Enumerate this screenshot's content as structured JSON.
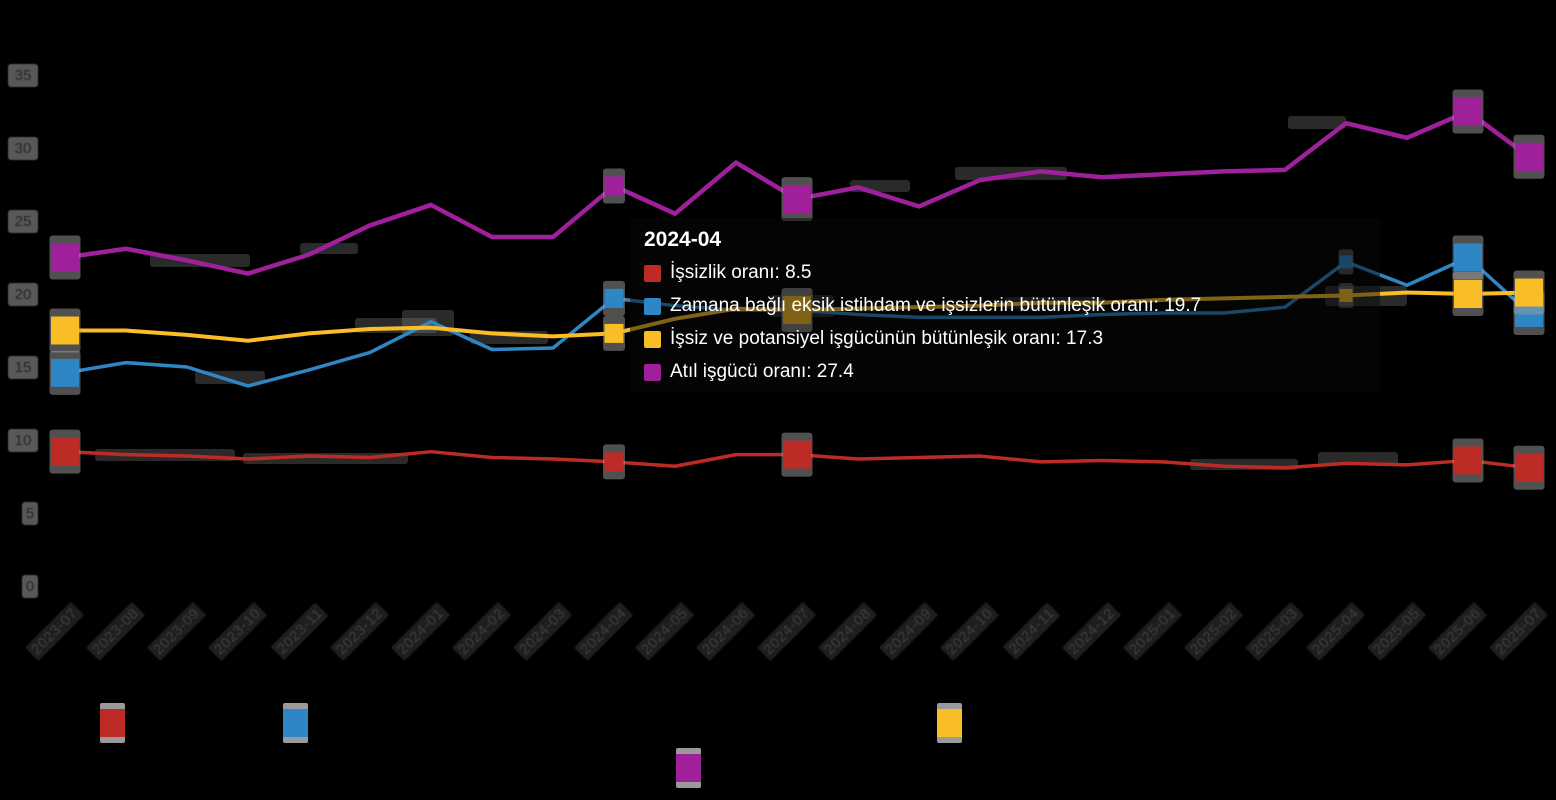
{
  "tooltip": {
    "title": "2024-04",
    "items": [
      {
        "text": "İşsizlik oranı: 8.5"
      },
      {
        "text": "Zamana bağlı eksik istihdam ve işsizlerin bütünleşik oranı: 19.7"
      },
      {
        "text": "İşsiz ve potansiyel işgücünün bütünleşik oranı: 17.3"
      },
      {
        "text": "Atıl işgücü oranı: 27.4"
      }
    ]
  },
  "legend": {
    "items": [
      {
        "label": "İşsizlik oranı",
        "color": "#bd2b26"
      },
      {
        "label": "Zamana bağlı eksik istihdam ve işsizlerin bütünleşik oranı",
        "color": "#2f86c4"
      },
      {
        "label": "İşsiz ve potansiyel işgücünün bütünleşik oranı",
        "color": "#f9bd26"
      },
      {
        "label": "Atıl işgücü oranı",
        "color": "#a0209c"
      }
    ]
  },
  "chart_data": {
    "type": "line",
    "background": "#000000",
    "grid": false,
    "legend_position": "bottom",
    "hovered_x": "2024-04",
    "highlight_index": 9,
    "marker_indices": [
      0,
      12,
      23,
      24
    ],
    "x": [
      "2023-07",
      "2023-08",
      "2023-09",
      "2023-10",
      "2023-11",
      "2023-12",
      "2024-01",
      "2024-02",
      "2024-03",
      "2024-04",
      "2024-05",
      "2024-06",
      "2024-07",
      "2024-08",
      "2024-09",
      "2024-10",
      "2024-11",
      "2024-12",
      "2025-01",
      "2025-02",
      "2025-03",
      "2025-04",
      "2025-05",
      "2025-06",
      "2025-07"
    ],
    "y_ticks": [
      0,
      5,
      10,
      15,
      20,
      25,
      30,
      35
    ],
    "ylim": [
      0,
      37.5
    ],
    "series": [
      {
        "name": "İşsizlik oranı",
        "color": "#bd2b26",
        "width": 3.5,
        "values": [
          9.2,
          9.0,
          8.9,
          8.7,
          8.9,
          8.8,
          9.2,
          8.8,
          8.7,
          8.5,
          8.2,
          9.0,
          9.0,
          8.7,
          8.8,
          8.9,
          8.5,
          8.6,
          8.5,
          8.2,
          8.1,
          8.4,
          8.3,
          8.6,
          8.1
        ]
      },
      {
        "name": "Zamana bağlı eksik istihdam ve işsizlerin bütünleşik oranı",
        "color": "#2f86c4",
        "width": 3.5,
        "values": [
          14.6,
          15.3,
          15.0,
          13.7,
          14.8,
          16.0,
          18.1,
          16.2,
          16.3,
          19.7,
          19.2,
          18.9,
          18.9,
          18.6,
          18.4,
          18.4,
          18.4,
          18.6,
          18.7,
          18.7,
          19.1,
          22.2,
          20.6,
          22.5,
          18.7
        ]
      },
      {
        "name": "İşsiz ve potansiyel işgücünün bütünleşik oranı",
        "color": "#f9bd26",
        "width": 4,
        "values": [
          17.5,
          17.5,
          17.2,
          16.8,
          17.3,
          17.6,
          17.7,
          17.3,
          17.1,
          17.3,
          18.3,
          19.0,
          18.9,
          19.0,
          19.1,
          19.2,
          19.4,
          19.4,
          19.6,
          19.7,
          19.8,
          19.9,
          20.1,
          20.0,
          20.1
        ]
      },
      {
        "name": "Atıl işgücü oranı",
        "color": "#a0209c",
        "width": 4.5,
        "values": [
          22.5,
          23.1,
          22.3,
          21.4,
          22.7,
          24.7,
          26.1,
          23.9,
          23.9,
          27.4,
          25.5,
          29.0,
          26.5,
          27.3,
          26.0,
          27.8,
          28.4,
          28.0,
          28.2,
          28.4,
          28.5,
          31.7,
          30.7,
          32.5,
          29.4
        ]
      }
    ]
  }
}
